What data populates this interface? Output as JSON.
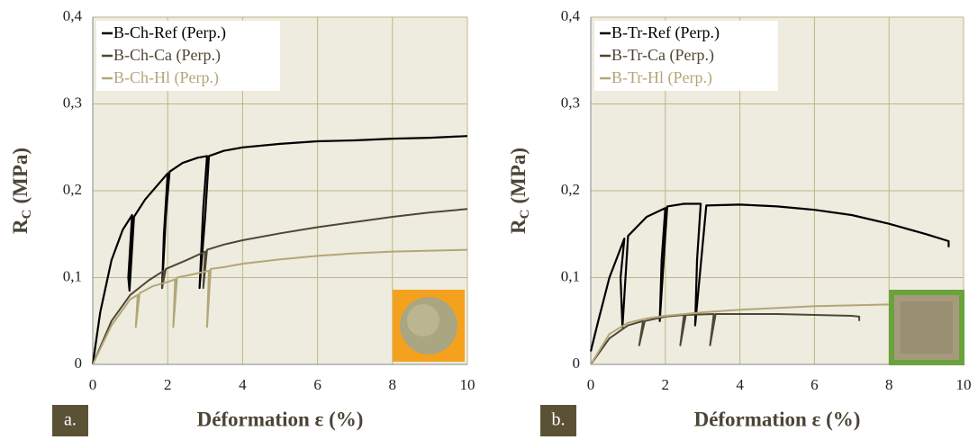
{
  "chart_data": [
    {
      "type": "line",
      "panel_label": "a.",
      "xlabel": "Déformation ε (%)",
      "ylabel": "R",
      "ylabel_sub": "C",
      "ylabel_unit": "(MPa)",
      "xlim": [
        0,
        10
      ],
      "xticks": [
        0,
        2,
        4,
        6,
        8,
        10
      ],
      "ylim": [
        0,
        0.4
      ],
      "yticks": [
        {
          "value": 0,
          "label": "0"
        },
        {
          "value": 0.1,
          "label": "0,1"
        },
        {
          "value": 0.2,
          "label": "0,2"
        },
        {
          "value": 0.3,
          "label": "0,3"
        },
        {
          "value": 0.4,
          "label": "0,4"
        }
      ],
      "grid": true,
      "legend": "upper left",
      "series": [
        {
          "name": "B-Ch-Ref (Perp.)",
          "color": "#000000",
          "x": [
            0,
            0.2,
            0.5,
            0.8,
            1.05,
            0.95,
            0.98,
            1.1,
            1.4,
            1.7,
            2.0,
            1.9,
            1.85,
            1.95,
            2.05,
            2.4,
            2.8,
            3.05,
            2.95,
            2.85,
            3.0,
            3.1,
            3.5,
            4,
            5,
            6,
            7,
            8,
            9,
            10
          ],
          "values": [
            0,
            0.06,
            0.12,
            0.155,
            0.172,
            0.1,
            0.085,
            0.17,
            0.19,
            0.205,
            0.22,
            0.15,
            0.088,
            0.17,
            0.222,
            0.232,
            0.238,
            0.24,
            0.18,
            0.088,
            0.17,
            0.24,
            0.246,
            0.25,
            0.254,
            0.257,
            0.258,
            0.26,
            0.261,
            0.263
          ]
        },
        {
          "name": "B-Ch-Ca (Perp.)",
          "color": "#4d4733",
          "x": [
            0,
            0.5,
            1,
            1.5,
            1.9,
            1.85,
            1.95,
            2.5,
            3.0,
            2.95,
            3.05,
            3.5,
            4,
            5,
            6,
            7,
            8,
            9,
            10
          ],
          "values": [
            0,
            0.05,
            0.08,
            0.097,
            0.108,
            0.088,
            0.11,
            0.12,
            0.13,
            0.088,
            0.132,
            0.138,
            0.143,
            0.151,
            0.158,
            0.164,
            0.17,
            0.175,
            0.179
          ]
        },
        {
          "name": "B-Ch-Hl (Perp.)",
          "color": "#b3a677",
          "x": [
            0,
            0.5,
            1.0,
            1.2,
            1.15,
            1.25,
            1.6,
            2.0,
            2.2,
            2.15,
            2.25,
            2.7,
            3.1,
            3.05,
            3.15,
            3.5,
            4,
            5,
            6,
            7,
            8,
            9,
            10
          ],
          "values": [
            0,
            0.045,
            0.075,
            0.08,
            0.043,
            0.082,
            0.09,
            0.095,
            0.098,
            0.043,
            0.1,
            0.104,
            0.108,
            0.043,
            0.11,
            0.112,
            0.116,
            0.121,
            0.125,
            0.128,
            0.13,
            0.131,
            0.132
          ]
        }
      ]
    },
    {
      "type": "line",
      "panel_label": "b.",
      "xlabel": "Déformation ε (%)",
      "ylabel": "R",
      "ylabel_sub": "C",
      "ylabel_unit": "(MPa)",
      "xlim": [
        0,
        10
      ],
      "xticks": [
        0,
        2,
        4,
        6,
        8,
        10
      ],
      "ylim": [
        0,
        0.4
      ],
      "yticks": [
        {
          "value": 0,
          "label": "0"
        },
        {
          "value": 0.1,
          "label": "0,1"
        },
        {
          "value": 0.2,
          "label": "0,2"
        },
        {
          "value": 0.3,
          "label": "0,3"
        },
        {
          "value": 0.4,
          "label": "0,4"
        }
      ],
      "grid": true,
      "legend": "upper left",
      "series": [
        {
          "name": "B-Tr-Ref (Perp.)",
          "color": "#000000",
          "x": [
            0,
            0.2,
            0.5,
            0.9,
            0.8,
            0.85,
            1.0,
            1.5,
            2.0,
            1.9,
            1.85,
            2.05,
            2.5,
            2.95,
            2.85,
            2.8,
            3.1,
            4,
            5,
            6,
            7,
            8,
            9,
            9.6,
            9.6
          ],
          "values": [
            0.015,
            0.05,
            0.1,
            0.145,
            0.1,
            0.043,
            0.148,
            0.17,
            0.18,
            0.12,
            0.05,
            0.182,
            0.185,
            0.185,
            0.12,
            0.045,
            0.183,
            0.184,
            0.182,
            0.178,
            0.172,
            0.162,
            0.15,
            0.142,
            0.135
          ]
        },
        {
          "name": "B-Tr-Ca (Perp.)",
          "color": "#4d4733",
          "x": [
            0,
            0.5,
            1,
            1.4,
            1.3,
            1.45,
            2,
            2.5,
            2.4,
            2.55,
            3.3,
            3.2,
            3.35,
            4,
            5,
            6,
            7,
            7.2,
            7.2
          ],
          "values": [
            0,
            0.03,
            0.045,
            0.05,
            0.022,
            0.05,
            0.055,
            0.057,
            0.022,
            0.057,
            0.058,
            0.022,
            0.058,
            0.058,
            0.058,
            0.057,
            0.056,
            0.055,
            0.05
          ]
        },
        {
          "name": "B-Tr-Hl (Perp.)",
          "color": "#b3a677",
          "x": [
            0,
            0.5,
            1,
            1.5,
            2,
            3,
            4,
            5,
            6,
            7,
            8,
            10
          ],
          "values": [
            0,
            0.035,
            0.048,
            0.053,
            0.056,
            0.06,
            0.063,
            0.065,
            0.067,
            0.068,
            0.069,
            0.07
          ]
        }
      ]
    }
  ]
}
